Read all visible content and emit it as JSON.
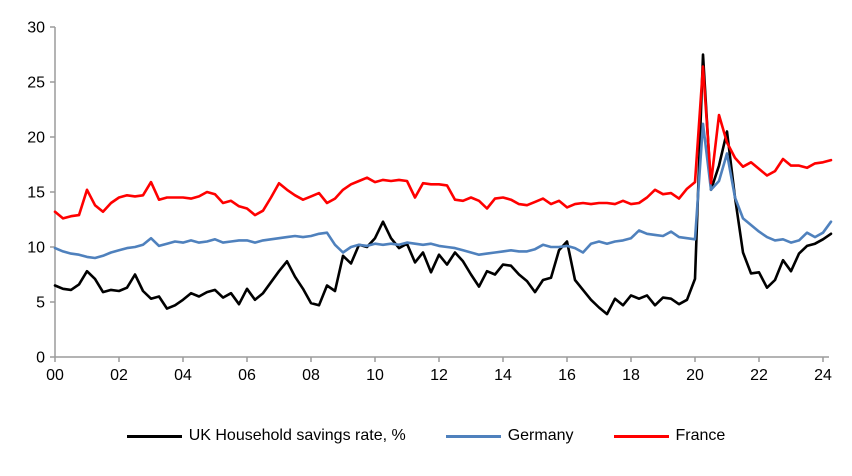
{
  "chart": {
    "title": "",
    "y_axis": {
      "tick_values": [
        0,
        5,
        10,
        15,
        20,
        25,
        30
      ],
      "tick_labels": [
        "0",
        "5",
        "10",
        "15",
        "20",
        "25",
        "30"
      ]
    },
    "x_axis": {
      "tick_years": [
        2000,
        2002,
        2004,
        2006,
        2008,
        2010,
        2012,
        2014,
        2016,
        2018,
        2020,
        2022,
        2024
      ],
      "tick_labels": [
        "00",
        "02",
        "04",
        "06",
        "08",
        "10",
        "12",
        "14",
        "16",
        "18",
        "20",
        "22",
        "24"
      ]
    },
    "axis_color": "#9b9b9b",
    "background": "#ffffff"
  },
  "chart_data": {
    "type": "line",
    "x_unit": "year, quarterly observations",
    "x_start": 2000,
    "x_step": 0.25,
    "ylim": [
      0,
      30
    ],
    "xlim": [
      2000,
      2024.5
    ],
    "grid": false,
    "legend_position": "bottom",
    "series": [
      {
        "name": "UK Household savings rate, %",
        "color": "#000000",
        "values": [
          6.5,
          6.2,
          6.1,
          6.6,
          7.8,
          7.1,
          5.9,
          6.1,
          6.0,
          6.3,
          7.5,
          6.0,
          5.3,
          5.5,
          4.4,
          4.7,
          5.2,
          5.8,
          5.5,
          5.9,
          6.1,
          5.4,
          5.8,
          4.8,
          6.2,
          5.2,
          5.8,
          6.8,
          7.8,
          8.7,
          7.3,
          6.2,
          4.9,
          4.7,
          6.5,
          6.0,
          9.2,
          8.5,
          10.2,
          10.0,
          10.8,
          12.3,
          10.8,
          9.9,
          10.3,
          8.6,
          9.5,
          7.7,
          9.3,
          8.4,
          9.5,
          8.7,
          7.5,
          6.4,
          7.8,
          7.5,
          8.4,
          8.3,
          7.5,
          6.9,
          5.9,
          7.0,
          7.2,
          9.7,
          10.5,
          7.0,
          6.1,
          5.2,
          4.5,
          3.9,
          5.3,
          4.7,
          5.6,
          5.3,
          5.6,
          4.7,
          5.4,
          5.3,
          4.8,
          5.2,
          7.1,
          27.5,
          15.2,
          17.4,
          20.5,
          14.5,
          9.5,
          7.6,
          7.7,
          6.3,
          7.0,
          8.8,
          7.8,
          9.4,
          10.1,
          10.3,
          10.7,
          11.2
        ]
      },
      {
        "name": "Germany",
        "color": "#4F81BD",
        "values": [
          9.9,
          9.6,
          9.4,
          9.3,
          9.1,
          9.0,
          9.2,
          9.5,
          9.7,
          9.9,
          10.0,
          10.2,
          10.8,
          10.1,
          10.3,
          10.5,
          10.4,
          10.6,
          10.4,
          10.5,
          10.7,
          10.4,
          10.5,
          10.6,
          10.6,
          10.4,
          10.6,
          10.7,
          10.8,
          10.9,
          11.0,
          10.9,
          11.0,
          11.2,
          11.3,
          10.2,
          9.5,
          10.0,
          10.2,
          10.1,
          10.3,
          10.2,
          10.3,
          10.2,
          10.4,
          10.3,
          10.2,
          10.3,
          10.1,
          10.0,
          9.9,
          9.7,
          9.5,
          9.3,
          9.4,
          9.5,
          9.6,
          9.7,
          9.6,
          9.6,
          9.8,
          10.2,
          10.0,
          10.0,
          10.1,
          9.9,
          9.5,
          10.3,
          10.5,
          10.3,
          10.5,
          10.6,
          10.8,
          11.5,
          11.2,
          11.1,
          11.0,
          11.4,
          10.9,
          10.8,
          10.7,
          21.2,
          15.2,
          16.0,
          18.5,
          14.5,
          12.6,
          12.0,
          11.4,
          10.9,
          10.6,
          10.7,
          10.4,
          10.6,
          11.3,
          10.9,
          11.3,
          12.3
        ]
      },
      {
        "name": "France",
        "color": "#FF0000",
        "values": [
          13.2,
          12.6,
          12.8,
          12.9,
          15.2,
          13.8,
          13.2,
          14.0,
          14.5,
          14.7,
          14.6,
          14.7,
          15.9,
          14.3,
          14.5,
          14.5,
          14.5,
          14.4,
          14.6,
          15.0,
          14.8,
          14.0,
          14.2,
          13.7,
          13.5,
          12.9,
          13.3,
          14.5,
          15.8,
          15.2,
          14.7,
          14.3,
          14.6,
          14.9,
          14.0,
          14.4,
          15.2,
          15.7,
          16.0,
          16.3,
          15.9,
          16.1,
          16.0,
          16.1,
          16.0,
          14.5,
          15.8,
          15.7,
          15.7,
          15.6,
          14.3,
          14.2,
          14.5,
          14.2,
          13.5,
          14.4,
          14.5,
          14.3,
          13.9,
          13.8,
          14.1,
          14.4,
          13.9,
          14.2,
          13.6,
          13.9,
          14.0,
          13.9,
          14.0,
          14.0,
          13.9,
          14.2,
          13.9,
          14.0,
          14.5,
          15.2,
          14.8,
          14.9,
          14.4,
          15.3,
          15.9,
          26.4,
          15.8,
          22.0,
          19.5,
          18.1,
          17.3,
          17.7,
          17.1,
          16.5,
          16.9,
          18.0,
          17.4,
          17.4,
          17.2,
          17.6,
          17.7,
          17.9
        ]
      }
    ]
  }
}
